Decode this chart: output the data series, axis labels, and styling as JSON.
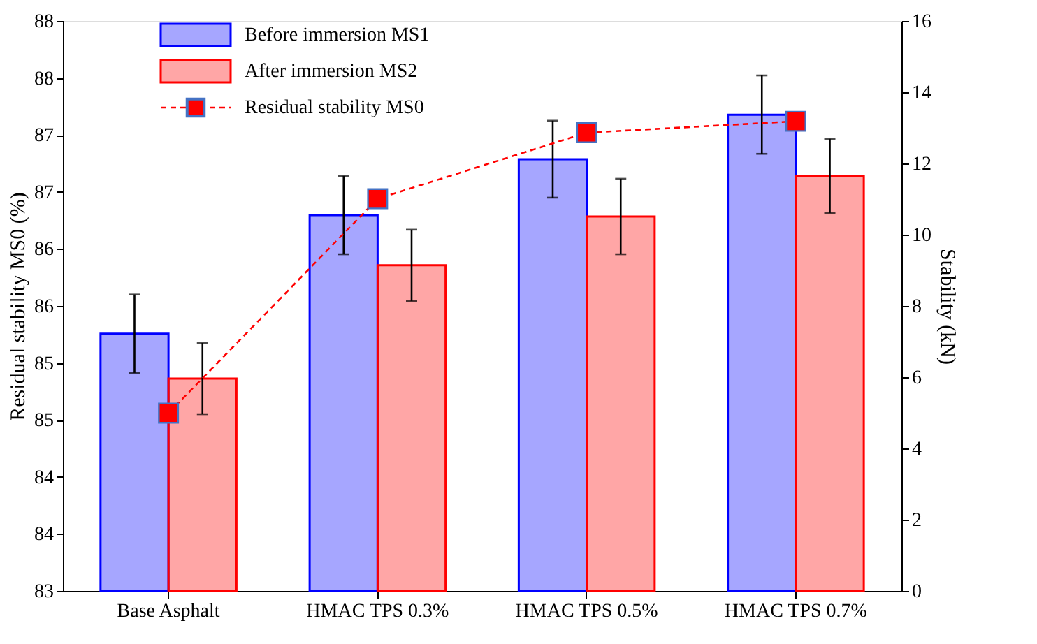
{
  "chart_data": {
    "type": "bar",
    "categories": [
      "Base Asphalt",
      "HMAC TPS 0.3%",
      "HMAC TPS 0.5%",
      "HMAC TPS 0.7%"
    ],
    "ylabel": "Residual stability MS0 (%)",
    "y2label": "Stability (kN)",
    "ylim": [
      83,
      88
    ],
    "yticks": [
      83,
      {
        "value": 83.5,
        "label": "84"
      },
      84,
      {
        "value": 84.5,
        "label": "85"
      },
      85,
      {
        "value": 85.5,
        "label": "86"
      },
      86,
      {
        "value": 86.5,
        "label": "87"
      },
      87,
      {
        "value": 87.5,
        "label": "88"
      },
      88
    ],
    "y2lim": [
      0,
      16
    ],
    "y2ticks": [
      0,
      2,
      4,
      6,
      8,
      10,
      12,
      14,
      16
    ],
    "series": [
      {
        "name": "Before immersion MS1",
        "axis": "y2",
        "color": "#0000ff",
        "values": [
          7.22,
          10.55,
          12.12,
          13.37
        ],
        "errors": [
          1.1,
          1.1,
          1.08,
          1.1
        ]
      },
      {
        "name": "After immersion MS2",
        "axis": "y2",
        "color": "#ff0000",
        "values": [
          5.96,
          9.14,
          10.51,
          11.65
        ],
        "errors": [
          1.0,
          1.0,
          1.06,
          1.04
        ]
      },
      {
        "name": "Residual stability MS0",
        "type": "line",
        "axis": "y",
        "color": "#ff0000",
        "values": [
          84.56,
          86.44,
          87.02,
          87.12
        ],
        "marker": "square",
        "line_style": "dashed"
      }
    ],
    "legend": "top left",
    "grid": false
  }
}
